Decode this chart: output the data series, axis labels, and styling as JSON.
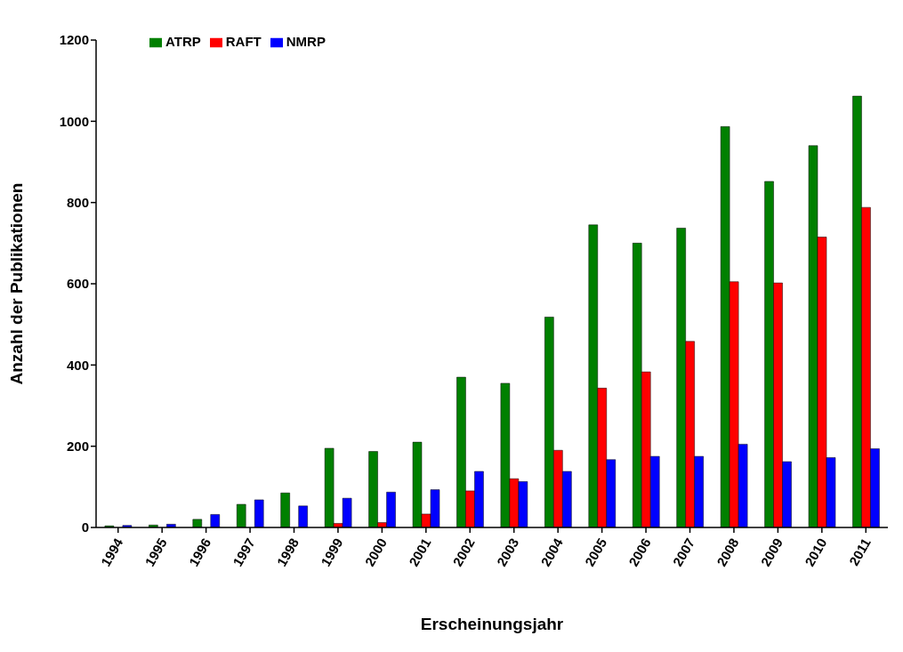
{
  "chart_data": {
    "type": "bar",
    "xlabel": "Erscheinungsjahr",
    "ylabel": "Anzahl der Publikationen",
    "categories": [
      "1994",
      "1995",
      "1996",
      "1997",
      "1998",
      "1999",
      "2000",
      "2001",
      "2002",
      "2003",
      "2004",
      "2005",
      "2006",
      "2007",
      "2008",
      "2009",
      "2010",
      "2011"
    ],
    "series": [
      {
        "name": "ATRP",
        "color": "#008000",
        "values": [
          4,
          6,
          20,
          57,
          85,
          195,
          187,
          210,
          370,
          355,
          518,
          745,
          700,
          737,
          987,
          852,
          940,
          1062
        ]
      },
      {
        "name": "RAFT",
        "color": "#ff0000",
        "values": [
          0,
          0,
          0,
          0,
          0,
          10,
          12,
          33,
          90,
          120,
          190,
          343,
          383,
          458,
          605,
          602,
          715,
          788
        ]
      },
      {
        "name": "NMRP",
        "color": "#0000ff",
        "values": [
          5,
          8,
          32,
          68,
          53,
          72,
          87,
          93,
          138,
          113,
          138,
          167,
          175,
          175,
          205,
          162,
          172,
          194
        ]
      }
    ],
    "ylim": [
      0,
      1200
    ],
    "yticks": [
      0,
      200,
      400,
      600,
      800,
      1000,
      1200
    ],
    "grid": false,
    "legend": "top left"
  }
}
